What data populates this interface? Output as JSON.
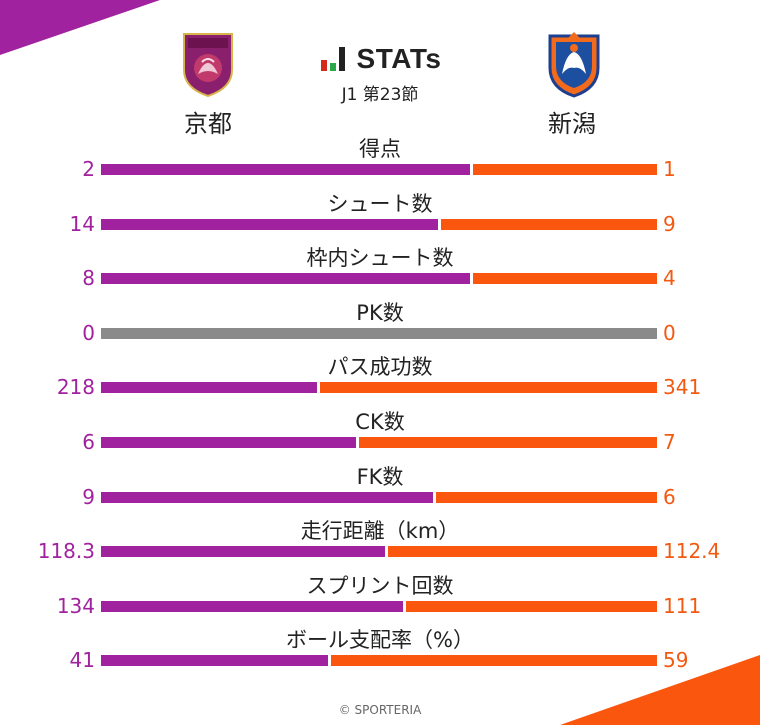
{
  "header": {
    "brand": "STATs",
    "round": "J1 第23節",
    "home_team": "京都",
    "away_team": "新潟"
  },
  "colors": {
    "home": "#a0229e",
    "away": "#fb560e",
    "neutral": "#8a8a8a",
    "brand_bar_dark": "#222222",
    "brand_bar_accent": "#d42a1e",
    "brand_bar_green": "#2aa84a"
  },
  "chart_data": {
    "type": "bar",
    "orientation": "horizontal-stacked-comparison",
    "series": [
      {
        "name": "京都"
      },
      {
        "name": "新潟"
      }
    ],
    "stats": [
      {
        "label": "得点",
        "home": "2",
        "away": "1"
      },
      {
        "label": "シュート数",
        "home": "14",
        "away": "9"
      },
      {
        "label": "枠内シュート数",
        "home": "8",
        "away": "4"
      },
      {
        "label": "PK数",
        "home": "0",
        "away": "0"
      },
      {
        "label": "パス成功数",
        "home": "218",
        "away": "341"
      },
      {
        "label": "CK数",
        "home": "6",
        "away": "7"
      },
      {
        "label": "FK数",
        "home": "9",
        "away": "6"
      },
      {
        "label": "走行距離（km）",
        "home": "118.3",
        "away": "112.4"
      },
      {
        "label": "スプリント回数",
        "home": "134",
        "away": "111"
      },
      {
        "label": "ボール支配率（%）",
        "home": "41",
        "away": "59"
      }
    ]
  },
  "footer": {
    "credit": "© SPORTERIA"
  }
}
